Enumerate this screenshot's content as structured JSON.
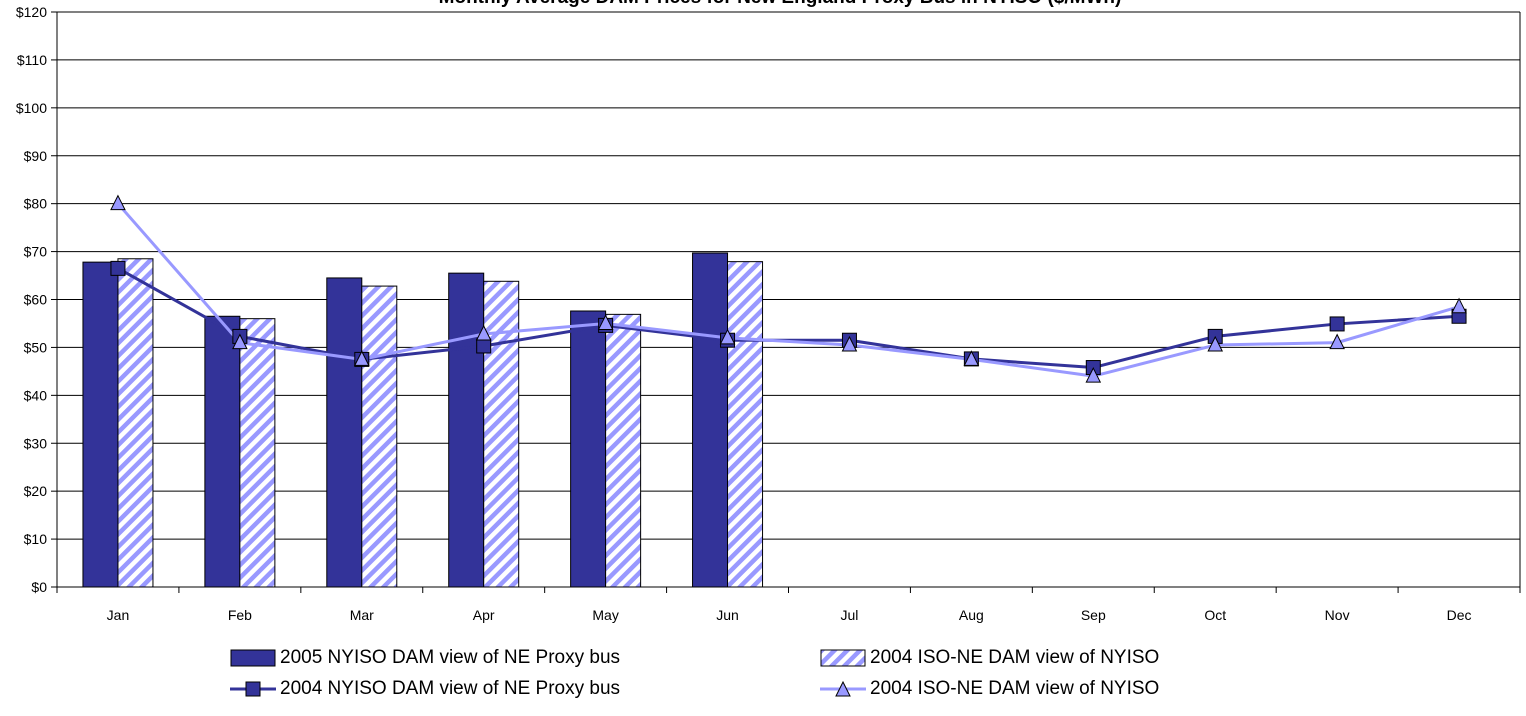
{
  "chart_data": {
    "type": "bar",
    "title": "Monthly Average DAM Prices for New England Proxy Bus in NYISO ($/MWh)",
    "categories": [
      "Jan",
      "Feb",
      "Mar",
      "Apr",
      "May",
      "Jun",
      "Jul",
      "Aug",
      "Sep",
      "Oct",
      "Nov",
      "Dec"
    ],
    "y_ticks": [
      "$0",
      "$10",
      "$20",
      "$30",
      "$40",
      "$50",
      "$60",
      "$70",
      "$80",
      "$90",
      "$100",
      "$110",
      "$120"
    ],
    "ylim": [
      0,
      120
    ],
    "grid": true,
    "legend_position": "bottom",
    "series": [
      {
        "name": "2005 NYISO DAM view of NE Proxy bus",
        "kind": "bar",
        "style": "solid",
        "color": "#333399",
        "values": [
          67.8,
          56.5,
          64.5,
          65.5,
          57.6,
          69.7,
          null,
          null,
          null,
          null,
          null,
          null
        ]
      },
      {
        "name": "2004 ISO-NE DAM view of NYISO",
        "kind": "bar",
        "style": "hatched",
        "color": "#9999ff",
        "values": [
          68.5,
          56.0,
          62.8,
          63.8,
          56.9,
          67.9,
          null,
          null,
          null,
          null,
          null,
          null
        ]
      },
      {
        "name": "2004 NYISO DAM view of NE Proxy bus",
        "kind": "line",
        "marker": "square",
        "color": "#333399",
        "values": [
          66.5,
          52.3,
          47.5,
          50.3,
          54.6,
          51.5,
          51.5,
          47.6,
          45.8,
          52.3,
          54.9,
          56.5
        ]
      },
      {
        "name": "2004 ISO-NE DAM view of NYISO",
        "kind": "line",
        "marker": "triangle",
        "color": "#9999ff",
        "values": [
          80.0,
          51.0,
          47.5,
          52.8,
          55.0,
          52.0,
          50.5,
          47.5,
          44.0,
          50.5,
          51.0,
          58.5
        ]
      }
    ]
  }
}
